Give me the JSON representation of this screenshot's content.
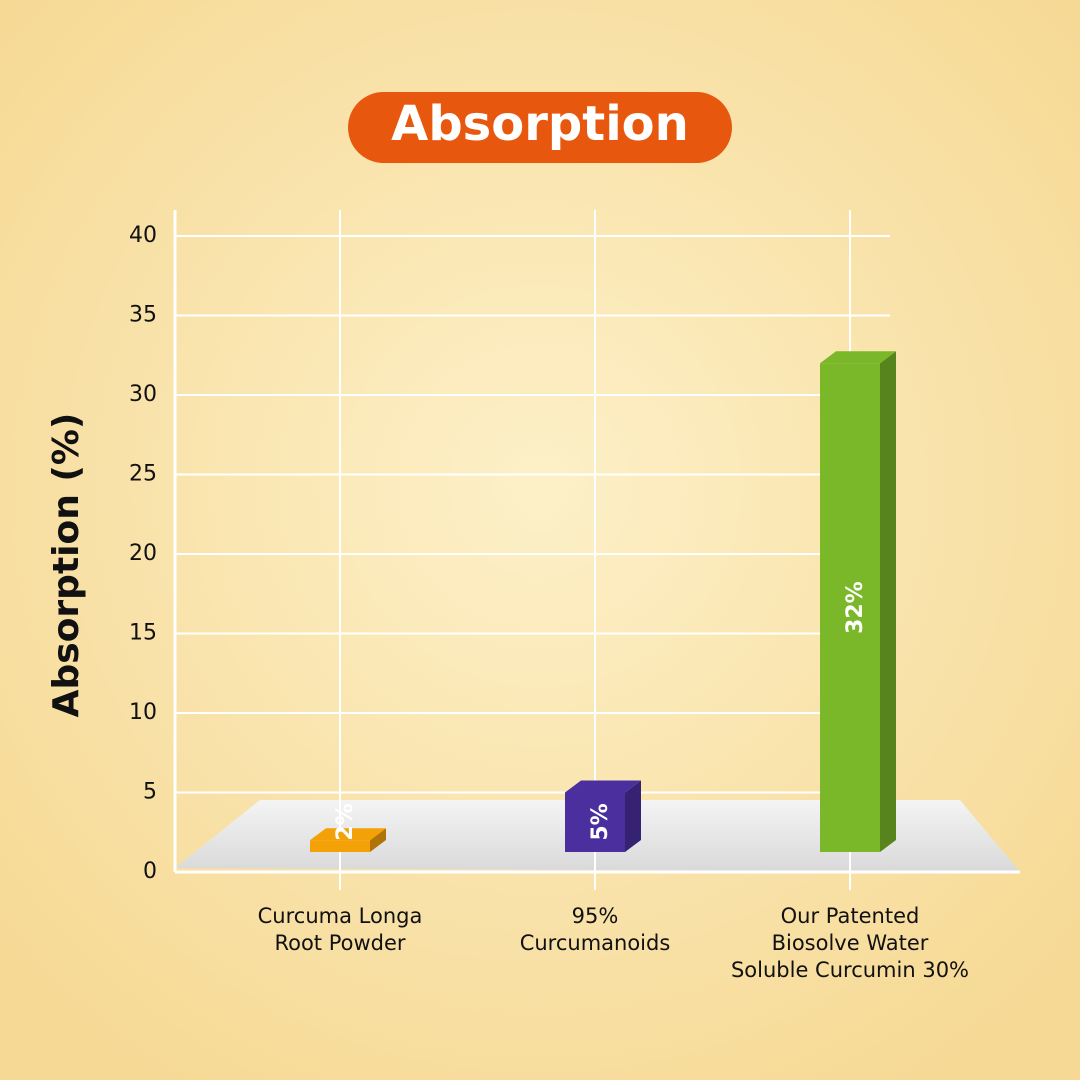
{
  "chart_data": {
    "type": "bar3d",
    "title": "Absorption",
    "y_label": "Absorption (%)",
    "categories": [
      [
        "Curcuma Longa",
        "Root Powder"
      ],
      [
        "95%",
        "Curcumanoids"
      ],
      [
        "Our Patented",
        "Biosolve Water",
        "Soluble Curcumin 30%"
      ]
    ],
    "values": [
      2,
      5,
      32
    ],
    "value_labels": [
      "2%",
      "5%",
      "32%"
    ],
    "colors": [
      "#f3a106",
      "#4b2f9e",
      "#7ab82a"
    ],
    "ylim": [
      0,
      40
    ],
    "yticks": [
      0,
      5,
      10,
      15,
      20,
      25,
      30,
      35,
      40
    ],
    "grid": true
  }
}
